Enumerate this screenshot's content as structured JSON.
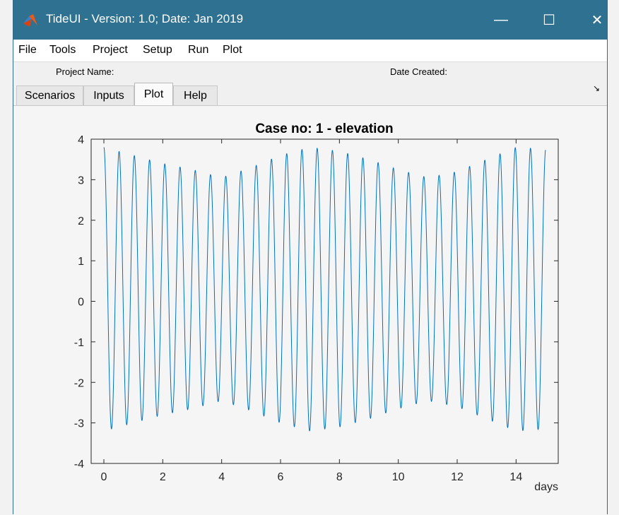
{
  "window": {
    "title": "TideUI - Version: 1.0;  Date: Jan 2019",
    "minimize_glyph": "—",
    "maximize_glyph": "☐",
    "close_glyph": "✕",
    "titlebar_color": "#2f7190"
  },
  "menu": {
    "items": [
      "File",
      "Tools",
      "Project",
      "Setup",
      "Run",
      "Plot"
    ],
    "dock_glyph": "↘"
  },
  "project": {
    "name_label": "Project Name:",
    "date_label": "Date Created:"
  },
  "tabs": [
    {
      "label": "Scenarios",
      "active": false
    },
    {
      "label": "Inputs",
      "active": false
    },
    {
      "label": "Plot",
      "active": true
    },
    {
      "label": "Help",
      "active": false
    }
  ],
  "chart_data": {
    "type": "line",
    "title": "Case no: 1 - elevation",
    "xlabel": "days",
    "ylabel": "",
    "xlim": [
      0,
      15
    ],
    "ylim": [
      -4,
      4
    ],
    "xticks": [
      0,
      2,
      4,
      6,
      8,
      10,
      12,
      14
    ],
    "yticks": [
      4,
      3,
      2,
      1,
      0,
      -1,
      -2,
      -3,
      -4
    ],
    "grid": false,
    "line_color": "#0072bd",
    "series": [
      {
        "model": {
          "mean": 0.3,
          "semidiurnal_period_days": 0.5175,
          "amplitude_x": [
            0.0,
            1.0,
            2.0,
            3.0,
            4.0,
            5.0,
            6.0,
            7.0,
            8.0,
            9.0,
            10.0,
            11.0,
            12.0,
            13.0,
            14.0,
            15.0
          ],
          "amplitude_y": [
            3.5,
            3.3,
            3.1,
            2.95,
            2.75,
            3.0,
            3.3,
            3.5,
            3.4,
            3.2,
            2.95,
            2.75,
            2.9,
            3.2,
            3.5,
            3.45
          ]
        },
        "peaks_x": [
          0.0,
          0.5,
          1.0,
          1.5,
          2.0,
          2.5,
          3.0,
          3.5,
          4.0,
          4.5,
          5.0,
          5.5,
          6.0,
          6.5,
          7.0,
          7.5,
          8.0,
          8.5,
          9.0,
          9.5,
          10.0,
          10.5,
          11.0,
          11.5,
          12.0,
          12.5,
          13.0,
          13.5,
          14.0,
          14.5,
          15.0
        ],
        "peaks_y": [
          3.8,
          3.7,
          3.6,
          3.5,
          3.35,
          3.2,
          3.0,
          2.8,
          2.6,
          2.7,
          3.0,
          3.3,
          3.6,
          3.7,
          3.8,
          3.8,
          3.75,
          3.65,
          3.5,
          3.3,
          3.1,
          2.9,
          2.7,
          2.6,
          2.8,
          3.0,
          3.3,
          3.6,
          3.8,
          3.75,
          3.7
        ],
        "troughs_x": [
          0.25,
          1.0,
          2.0,
          3.0,
          4.0,
          5.0,
          6.0,
          7.0,
          8.0,
          9.0,
          10.0,
          11.0,
          12.0,
          13.0,
          14.0,
          14.75
        ],
        "troughs_y": [
          -3.2,
          -3.15,
          -3.0,
          -2.6,
          -2.4,
          -2.6,
          -2.9,
          -3.15,
          -3.15,
          -3.0,
          -2.65,
          -2.45,
          -2.6,
          -2.95,
          -3.15,
          -3.2
        ]
      }
    ]
  }
}
